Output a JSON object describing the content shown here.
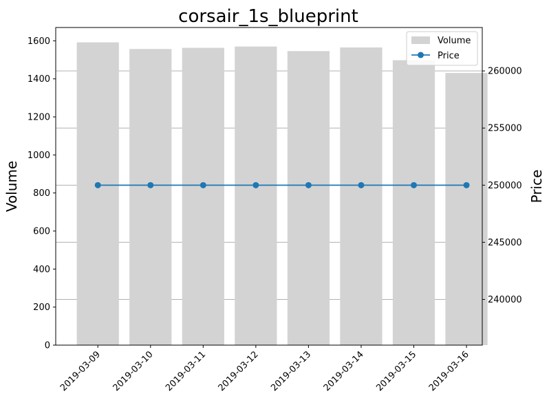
{
  "chart_data": {
    "type": "bar",
    "title": "corsair_1s_blueprint",
    "xlabel": "",
    "ylabel": "Volume",
    "y2label": "Price",
    "categories": [
      "2019-03-09",
      "2019-03-10",
      "2019-03-11",
      "2019-03-12",
      "2019-03-13",
      "2019-03-14",
      "2019-03-15",
      "2019-03-16"
    ],
    "series": [
      {
        "name": "Volume",
        "kind": "bar",
        "axis": "left",
        "color": "#d3d3d3",
        "values": [
          1592,
          1557,
          1563,
          1570,
          1546,
          1565,
          1498,
          1431
        ]
      },
      {
        "name": "Price",
        "kind": "line",
        "axis": "right",
        "color": "#1f77b4",
        "values": [
          250000,
          250000,
          250000,
          250000,
          250000,
          250000,
          250000,
          250000
        ]
      }
    ],
    "ylim": [
      0,
      1670
    ],
    "y2lim": [
      236000,
      263800
    ],
    "yticks": [
      0,
      200,
      400,
      600,
      800,
      1000,
      1200,
      1400,
      1600
    ],
    "y2ticks": [
      240000,
      245000,
      250000,
      255000,
      260000
    ],
    "grid": "horizontal gridlines at right-axis ticks",
    "legend": "top-right"
  }
}
